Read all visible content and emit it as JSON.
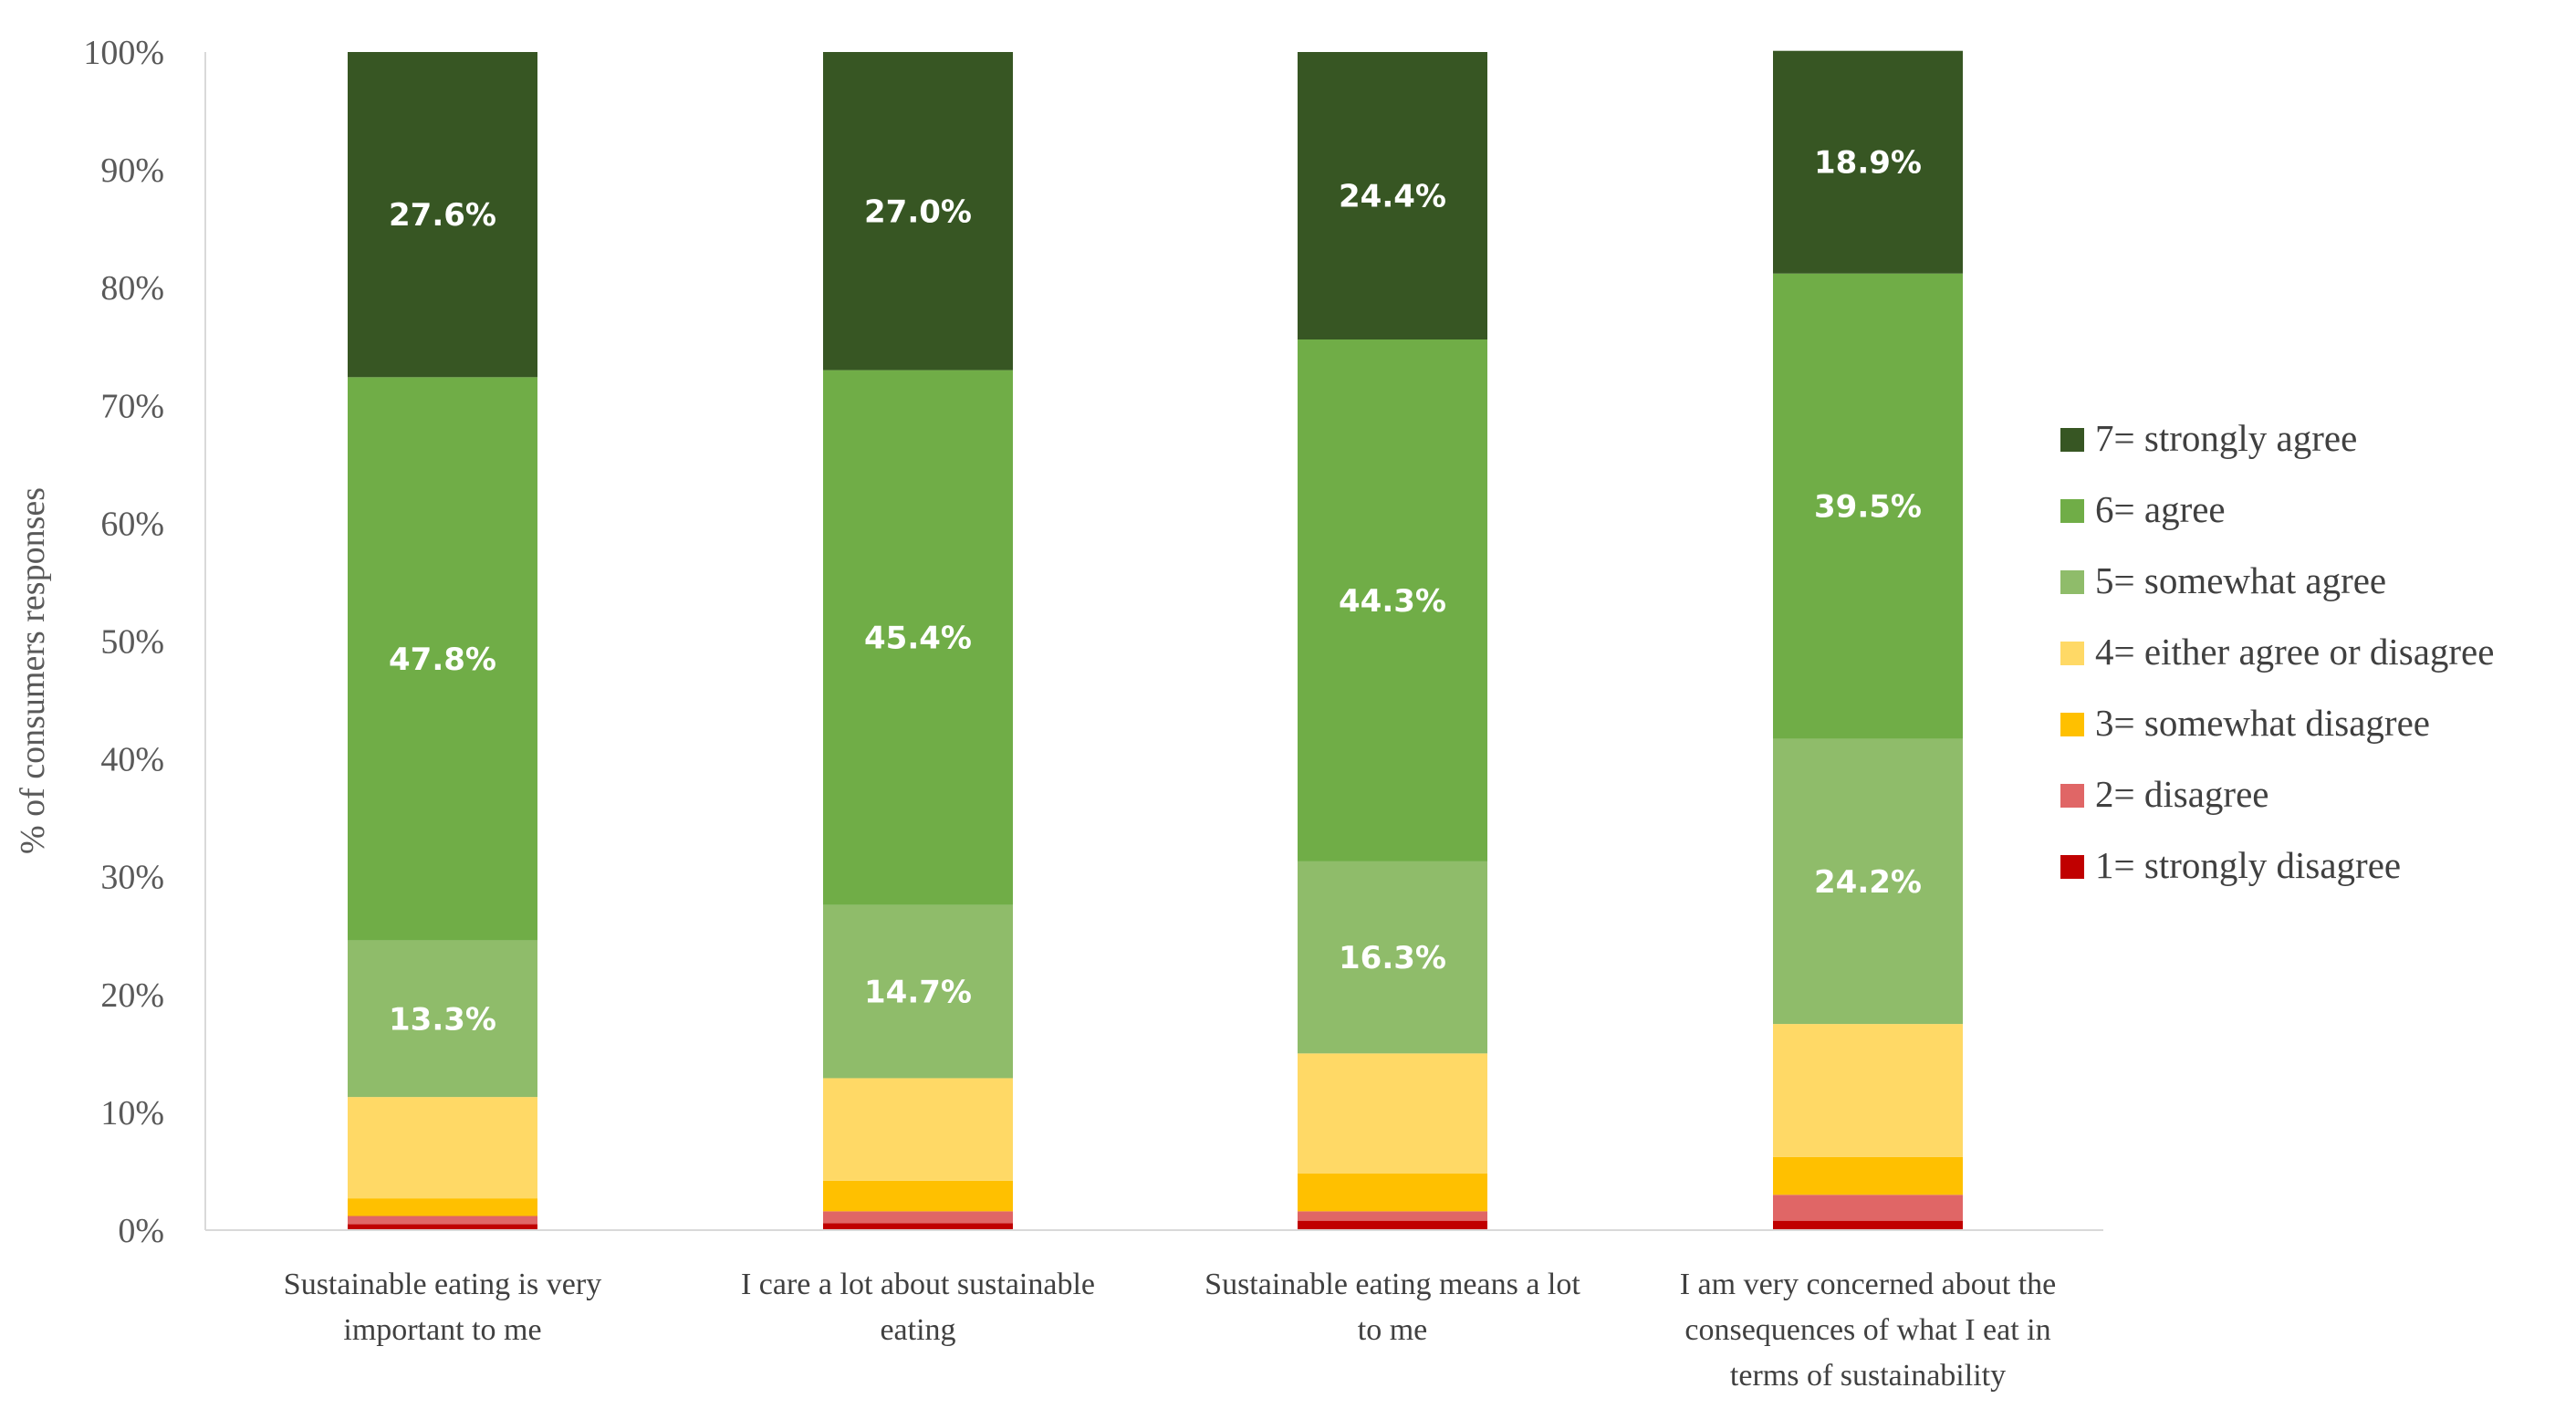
{
  "chart_data": {
    "type": "bar",
    "stacked": true,
    "normalized": true,
    "ylabel": "% of consumers responses",
    "ylim": [
      0,
      100
    ],
    "yticks": [
      "0%",
      "10%",
      "20%",
      "30%",
      "40%",
      "50%",
      "60%",
      "70%",
      "80%",
      "90%",
      "100%"
    ],
    "grid": false,
    "legend_position": "right",
    "categories": [
      [
        "Sustainable eating is very",
        "important to me"
      ],
      [
        "I care a lot about sustainable",
        "eating"
      ],
      [
        "Sustainable eating means a lot",
        "to me"
      ],
      [
        "I am very concerned about the",
        "consequences of what I eat in",
        "terms of sustainability"
      ]
    ],
    "series": [
      {
        "name": "1= strongly disagree",
        "color": "#C00000",
        "values": [
          0.5,
          0.6,
          0.8,
          0.8
        ],
        "labels": [
          "",
          "",
          "",
          ""
        ]
      },
      {
        "name": "2= disagree",
        "color": "#E06666",
        "values": [
          0.7,
          1.0,
          0.8,
          2.2
        ],
        "labels": [
          "",
          "",
          "",
          ""
        ]
      },
      {
        "name": "3= somewhat disagree",
        "color": "#FFC000",
        "values": [
          1.5,
          2.6,
          3.2,
          3.2
        ],
        "labels": [
          "",
          "",
          "",
          ""
        ]
      },
      {
        "name": "4= either agree or disagree",
        "color": "#FFD966",
        "values": [
          8.6,
          8.7,
          10.2,
          11.3
        ],
        "labels": [
          "",
          "",
          "",
          ""
        ]
      },
      {
        "name": "5= somewhat agree",
        "color": "#8FBC6A",
        "values": [
          13.3,
          14.7,
          16.3,
          24.2
        ],
        "labels": [
          "13.3%",
          "14.7%",
          "16.3%",
          "24.2%"
        ]
      },
      {
        "name": "6= agree",
        "color": "#70AD47",
        "values": [
          47.8,
          45.4,
          44.3,
          39.5
        ],
        "labels": [
          "47.8%",
          "45.4%",
          "44.3%",
          "39.5%"
        ]
      },
      {
        "name": "7= strongly agree",
        "color": "#375623",
        "values": [
          27.6,
          27.0,
          24.4,
          18.9
        ],
        "labels": [
          "27.6%",
          "27.0%",
          "24.4%",
          "18.9%"
        ]
      }
    ]
  }
}
